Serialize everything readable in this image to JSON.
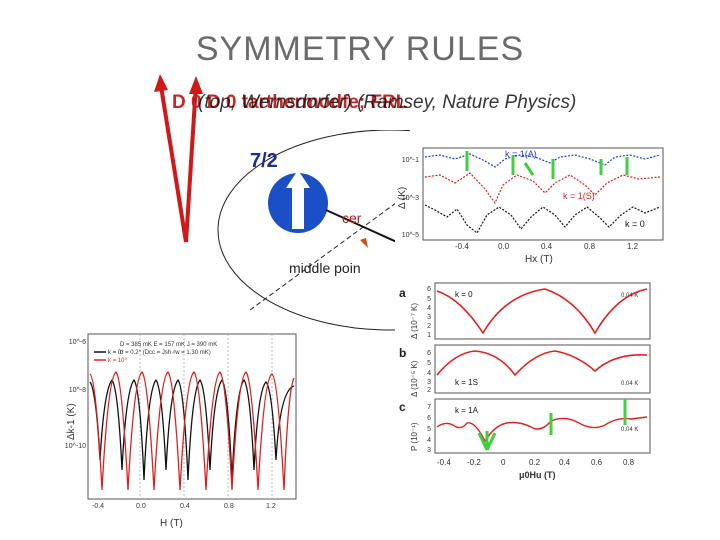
{
  "slide": {
    "title": "SYMMETRY RULES",
    "subtitle_garbled": "D 0 D 0 tarthermodfe; FRL",
    "subtitle_overlay": "(top, Wernsdorfer) (Ramsey, Nature Physics)",
    "spin_label": "7/2",
    "center_label": "cer",
    "middle_label": "middle poin"
  },
  "top_right_plot": {
    "ylabel": "Δ (K)",
    "xlabel": "Hx (T)",
    "y_ticks": [
      "10^-1",
      "10^-3",
      "10^-5"
    ],
    "x_ticks": [
      "-0.4",
      "0.0",
      "0.4",
      "0.8",
      "1.2"
    ],
    "labels": [
      "k = 1(A)",
      "k = 1(S)",
      "k = 0"
    ],
    "series_colors": [
      "#1f3fd6",
      "#e02020",
      "#111111"
    ]
  },
  "bottom_left_plot": {
    "ylabel": "Δk-1 (K)",
    "xlabel": "H (T)",
    "y_ticks": [
      "10^-6",
      "10^-8",
      "10^-10"
    ],
    "x_ticks": [
      "-0.4",
      "0.0",
      "0.4",
      "0.8",
      "1.2"
    ],
    "legend": [
      "k = 0°",
      "k = 10°"
    ],
    "params": "D = 385 mK   E = 157 mK   J = 390 mK",
    "params2": "α = 0.2°  (Dcc = Jsh·rw = 1.30 mK)",
    "series_colors": [
      "#111111",
      "#e02020"
    ]
  },
  "right_panels": {
    "panels": [
      {
        "letter": "a",
        "ylabel": "Δ (10⁻⁷ K)",
        "label": "k = 0",
        "corner": "0.04 K",
        "y_ticks": [
          "6",
          "5",
          "4",
          "3",
          "2",
          "1",
          "0"
        ]
      },
      {
        "letter": "b",
        "ylabel": "Δ (10⁻⁵ K)",
        "label": "k = 1S",
        "corner": "0.04 K",
        "y_ticks": [
          "6",
          "5",
          "4",
          "3",
          "2"
        ]
      },
      {
        "letter": "c",
        "ylabel": "P (10⁻¹)",
        "label": "k = 1A",
        "corner": "0.04 K",
        "y_ticks": [
          "7",
          "6",
          "5",
          "4",
          "3"
        ]
      }
    ],
    "x_ticks": [
      "-0.4",
      "-0.2",
      "0",
      "0.2",
      "0.4",
      "0.6",
      "0.8"
    ],
    "xlabel": "μ0Hu (T)"
  },
  "colors": {
    "title": "#6b6b6b",
    "arrow_red": "#d01818",
    "spin_blue": "#1a4fc8",
    "highlight_green": "#3fcf3f"
  }
}
